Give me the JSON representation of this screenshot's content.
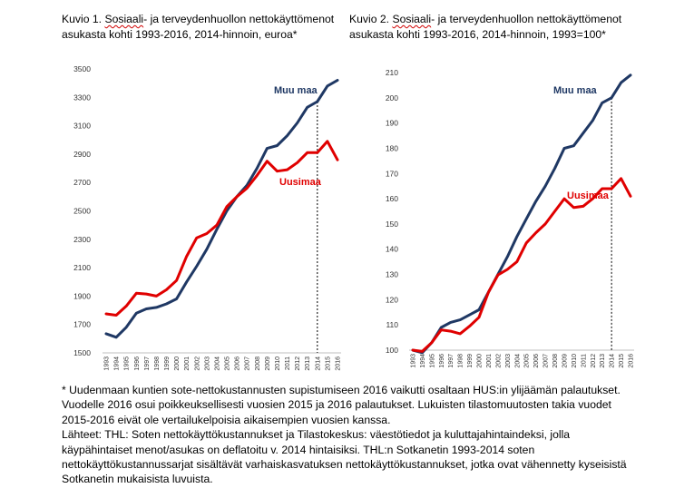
{
  "figure1": {
    "title_line1_prefix": "Kuvio 1. ",
    "title_line1_wavy": "Sosiaali",
    "title_line1_suffix": "- ja terveydenhuollon nettokäyttömenot",
    "title_line2": "asukasta kohti 1993-2016, 2014-hinnoin, euroa*"
  },
  "figure2": {
    "title_line1_prefix": "Kuvio 2. ",
    "title_line1_wavy": "Sosiaali",
    "title_line1_suffix": "- ja terveydenhuollon nettokäyttömenot",
    "title_line2": "asukasta kohti 1993-2016, 2014-hinnoin, 1993=100*"
  },
  "chart_data": [
    {
      "type": "line",
      "x": [
        "1993",
        "1994",
        "1995",
        "1996",
        "1997",
        "1998",
        "1999",
        "2000",
        "2001",
        "2002",
        "2003",
        "2004",
        "2005",
        "2006",
        "2007",
        "2008",
        "2009",
        "2010",
        "2011",
        "2012",
        "2013",
        "2014",
        "2015",
        "2016"
      ],
      "ylim": [
        1500,
        3500
      ],
      "yticks": [
        1500,
        1700,
        1900,
        2100,
        2300,
        2500,
        2700,
        2900,
        3100,
        3300,
        3500
      ],
      "vline_at": "2014",
      "colors": {
        "Muu maa": "#1f3864",
        "Uusimaa": "#e00000"
      },
      "series": [
        {
          "name": "Muu maa",
          "values": [
            1635,
            1610,
            1680,
            1780,
            1810,
            1820,
            1845,
            1880,
            2000,
            2110,
            2230,
            2370,
            2500,
            2600,
            2680,
            2800,
            2940,
            2960,
            3030,
            3120,
            3230,
            3270,
            3380,
            3420
          ]
        },
        {
          "name": "Uusimaa",
          "values": [
            1775,
            1765,
            1830,
            1920,
            1915,
            1900,
            1945,
            2010,
            2180,
            2310,
            2340,
            2400,
            2530,
            2600,
            2660,
            2750,
            2850,
            2780,
            2790,
            2840,
            2910,
            2910,
            2990,
            2860
          ]
        }
      ]
    },
    {
      "type": "line",
      "x": [
        "1993",
        "1994",
        "1995",
        "1996",
        "1997",
        "1998",
        "1999",
        "2000",
        "2001",
        "2002",
        "2003",
        "2004",
        "2005",
        "2006",
        "2007",
        "2008",
        "2009",
        "2010",
        "2011",
        "2012",
        "2013",
        "2014",
        "2015",
        "2016"
      ],
      "ylim": [
        100,
        210
      ],
      "yticks": [
        100,
        110,
        120,
        130,
        140,
        150,
        160,
        170,
        180,
        190,
        200,
        210
      ],
      "vline_at": "2014",
      "colors": {
        "Muu maa": "#1f3864",
        "Uusimaa": "#e00000"
      },
      "series": [
        {
          "name": "Muu maa",
          "values": [
            100,
            99,
            103,
            109,
            111,
            112,
            114,
            116,
            123,
            130,
            137,
            145,
            152,
            159,
            165,
            172,
            180,
            181,
            186,
            191,
            198,
            200,
            206,
            209
          ]
        },
        {
          "name": "Uusimaa",
          "values": [
            100,
            99.5,
            103,
            108,
            107.5,
            106.5,
            109.5,
            113,
            123,
            129.8,
            132,
            135,
            142.5,
            146.5,
            150,
            155,
            160,
            156.5,
            157,
            160,
            164,
            164,
            168,
            161
          ]
        }
      ]
    }
  ],
  "footnote": {
    "line1": "* Uudenmaan kuntien sote-nettokustannusten supistumiseen 2016 vaikutti osaltaan HUS:in ylijäämän palautukset.",
    "line2": "Vuodelle 2016 osui poikkeuksellisesti vuosien 2015 ja 2016 palautukset. Lukuisten tilastomuutosten takia vuodet",
    "line3": "2015-2016 eivät ole vertailukelpoisia aikaisempien vuosien kanssa.",
    "line4": "Lähteet: THL: Soten nettokäyttökustannukset ja Tilastokeskus: väestötiedot ja kuluttajahintaindeksi, jolla",
    "line5": "käypähintaiset menot/asukas on deflatoitu v. 2014 hintaisiksi. THL:n Sotkanetin 1993-2014 soten",
    "line6": "nettokäyttökustannussarjat sisältävät varhaiskasvatuksen nettokäyttökustannukset, jotka ovat vähennetty kyseisistä",
    "line7": "Sotkanetin mukaisista luvuista."
  }
}
